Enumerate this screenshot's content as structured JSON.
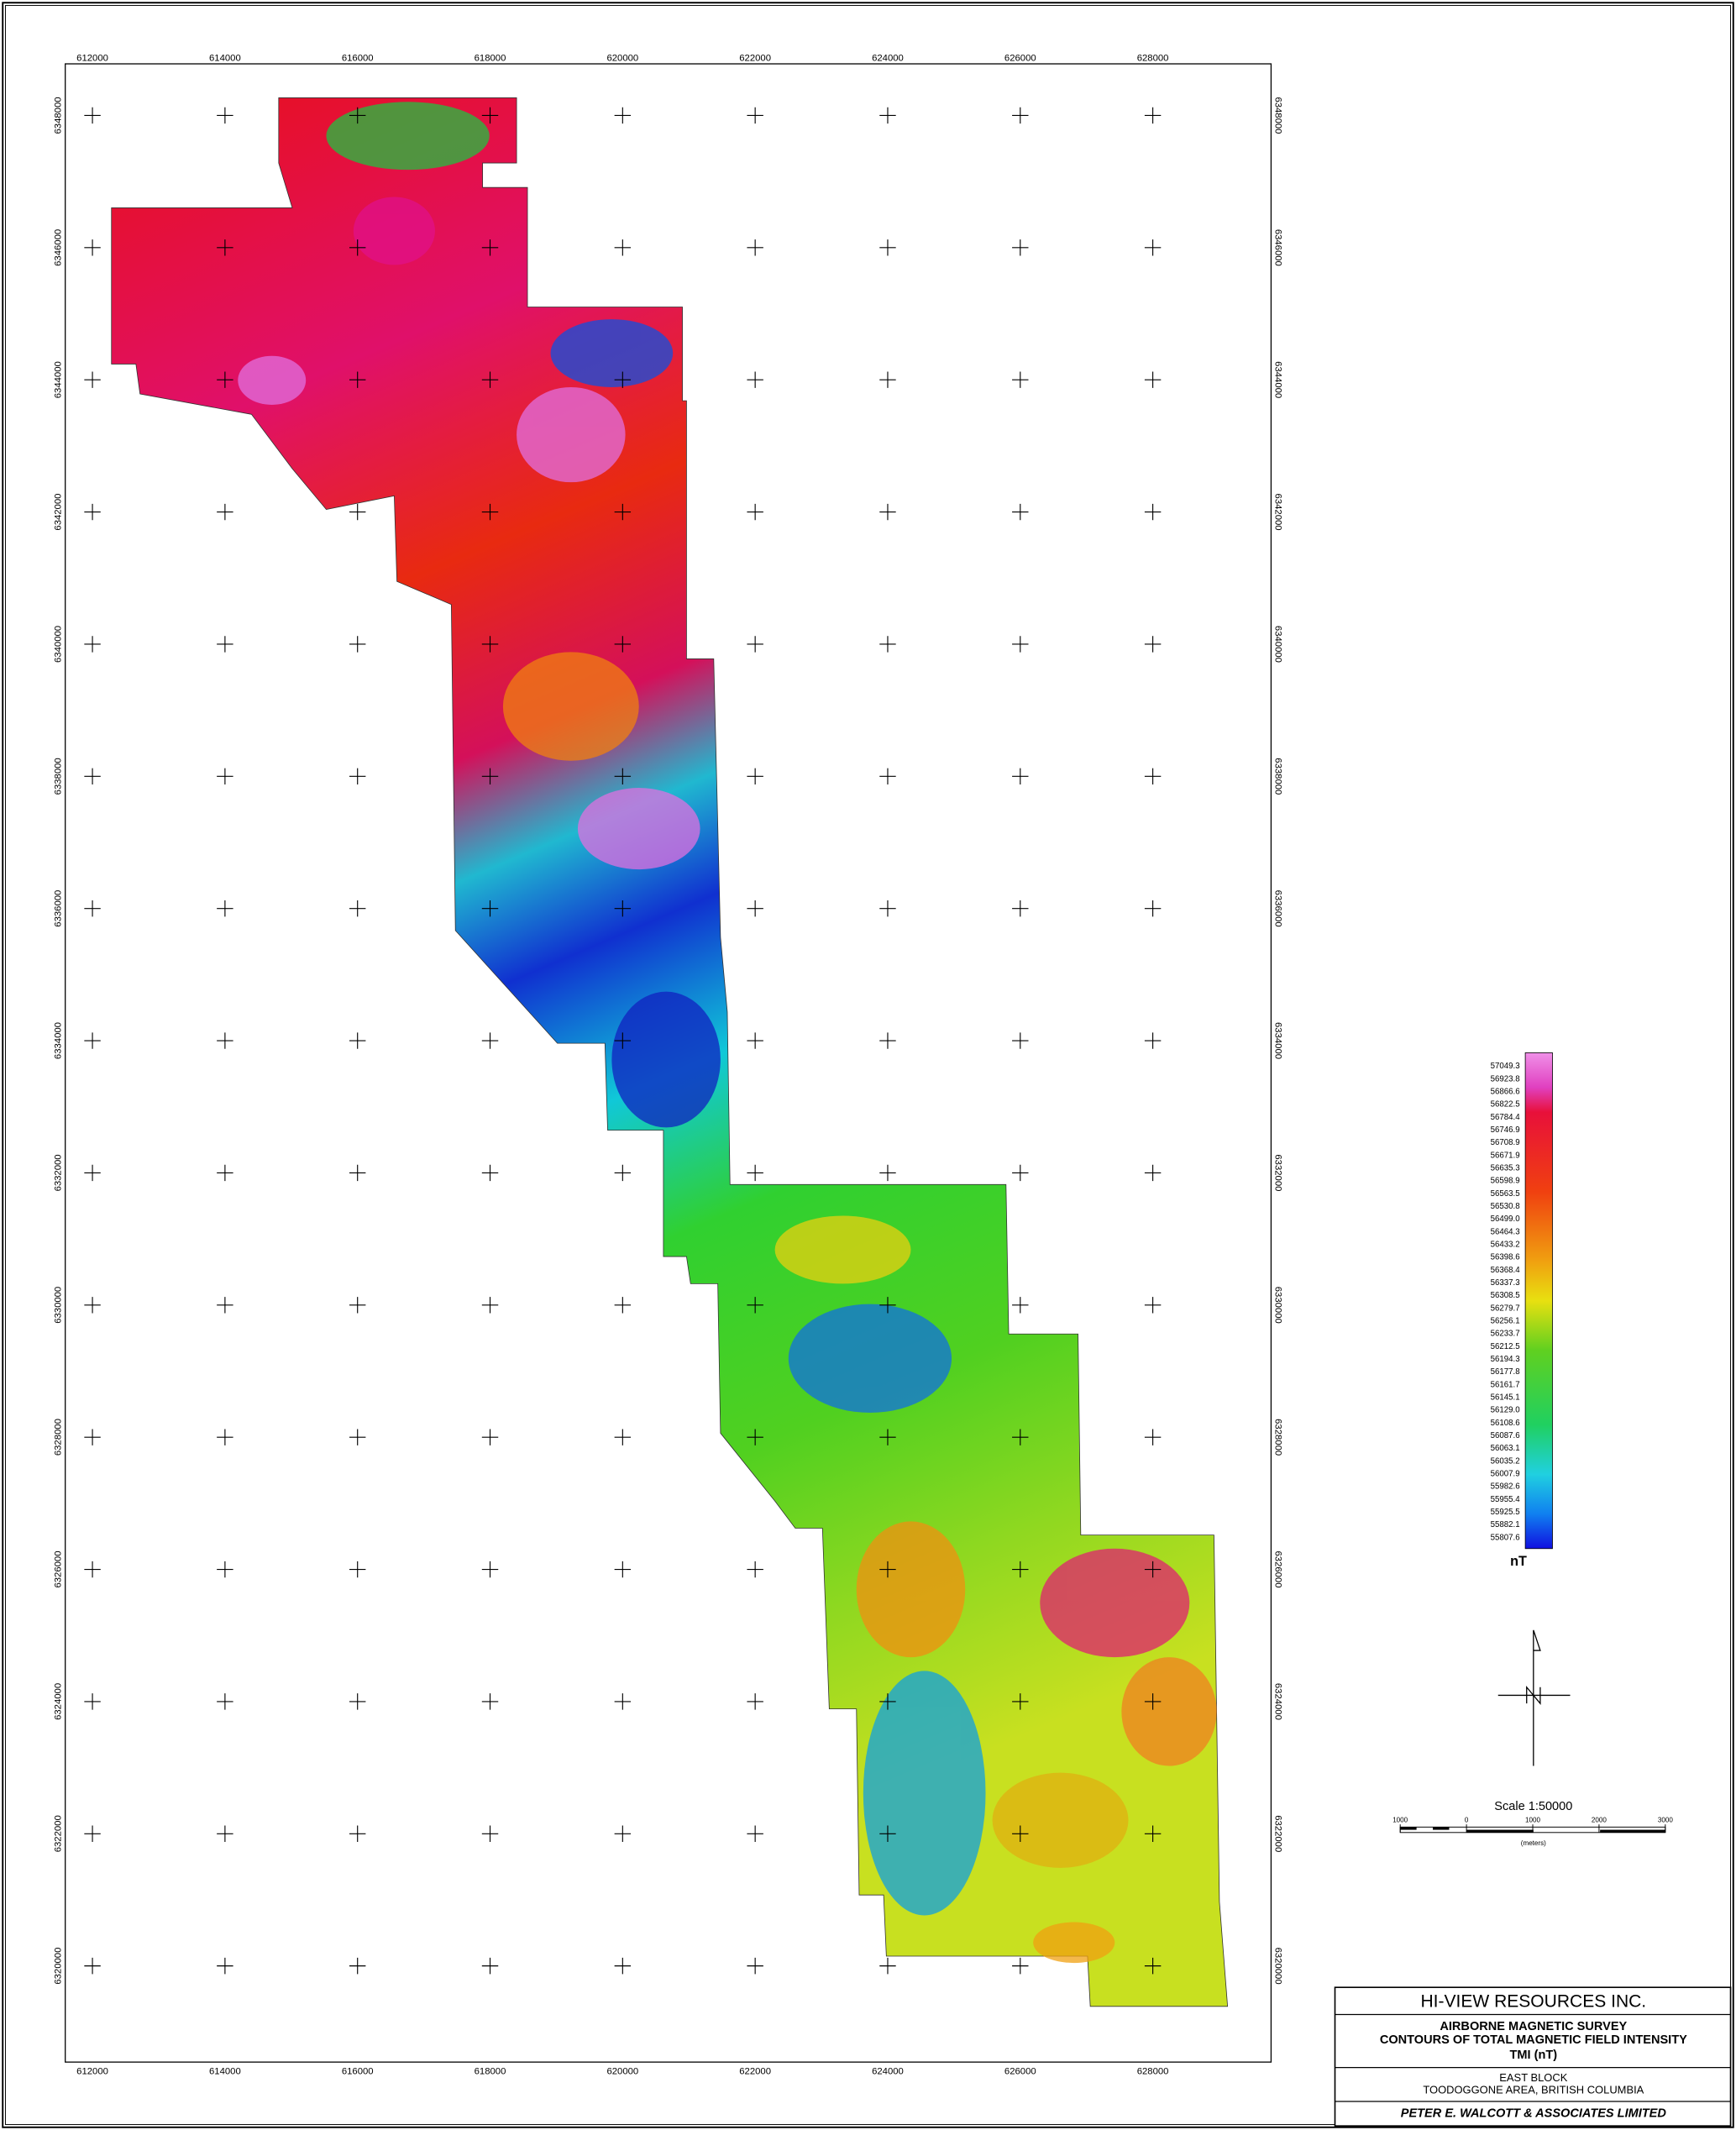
{
  "grid": {
    "eastings": [
      612000,
      614000,
      616000,
      618000,
      620000,
      622000,
      624000,
      626000,
      628000
    ],
    "northings": [
      6348000,
      6346000,
      6344000,
      6342000,
      6340000,
      6338000,
      6336000,
      6334000,
      6332000,
      6330000,
      6328000,
      6326000,
      6324000,
      6322000,
      6320000
    ]
  },
  "legend": {
    "values": [
      "57049.3",
      "56923.8",
      "56866.6",
      "56822.5",
      "56784.4",
      "56746.9",
      "56708.9",
      "56671.9",
      "56635.3",
      "56598.9",
      "56563.5",
      "56530.8",
      "56499.0",
      "56464.3",
      "56433.2",
      "56398.6",
      "56368.4",
      "56337.3",
      "56308.5",
      "56279.7",
      "56256.1",
      "56233.7",
      "56212.5",
      "56194.3",
      "56177.8",
      "56161.7",
      "56145.1",
      "56129.0",
      "56108.6",
      "56087.6",
      "56063.1",
      "56035.2",
      "56007.9",
      "55982.6",
      "55955.4",
      "55925.5",
      "55882.1",
      "55807.6"
    ],
    "unit": "nT"
  },
  "scale": {
    "title": "Scale 1:50000",
    "ticks": [
      "1000",
      "0",
      "1000",
      "2000",
      "3000"
    ],
    "unit": "(meters)"
  },
  "title_block": {
    "company": "HI-VIEW RESOURCES INC.",
    "survey": [
      "AIRBORNE MAGNETIC SURVEY",
      "CONTOURS OF TOTAL MAGNETIC FIELD INTENSITY",
      "TMI (nT)"
    ],
    "location": [
      "EAST BLOCK",
      "TOODOGGONE AREA, BRITISH COLUMBIA"
    ],
    "contractor": "PETER E. WALCOTT & ASSOCIATES LIMITED"
  }
}
